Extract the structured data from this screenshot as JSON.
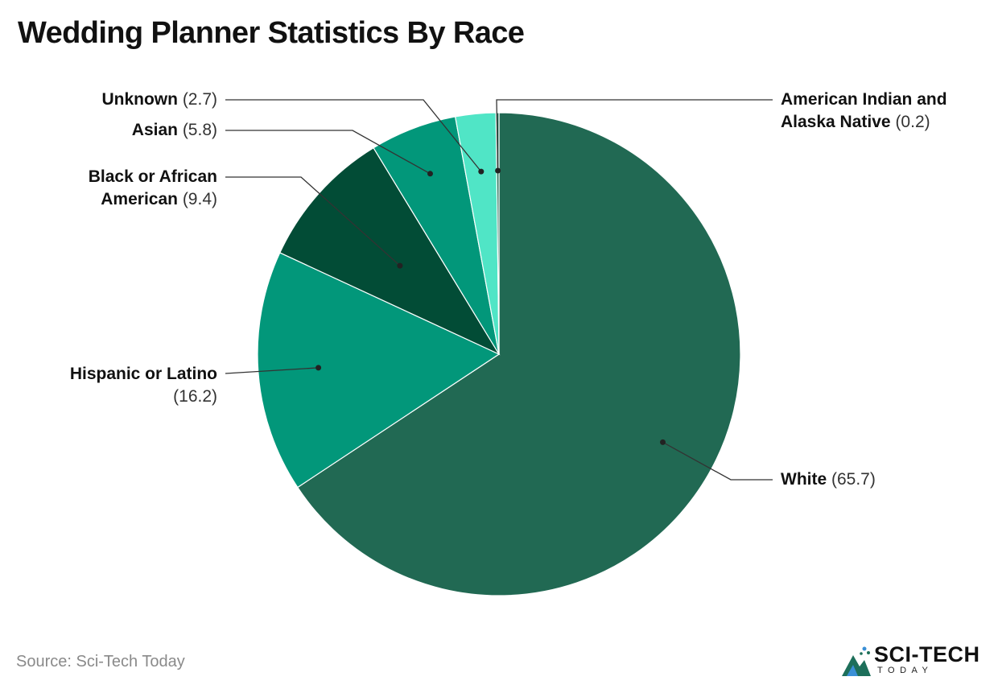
{
  "title": "Wedding Planner Statistics By Race",
  "source": "Source: Sci-Tech Today",
  "logo": {
    "main": "SCI-TECH",
    "sub": "TODAY"
  },
  "chart_data": {
    "type": "pie",
    "title": "Wedding Planner Statistics By Race",
    "start_angle_deg": 0,
    "direction": "clockwise",
    "slices": [
      {
        "name": "White",
        "line1": "White",
        "line2": "",
        "value_text": "(65.7)",
        "value": 65.7,
        "color": "#216953"
      },
      {
        "name": "Hispanic or Latino",
        "line1": "Hispanic or Latino",
        "line2": "",
        "value_text": "(16.2)",
        "value": 16.2,
        "color": "#02977A"
      },
      {
        "name": "Black or African American",
        "line1": "Black or African",
        "line2": "American",
        "value_text": "(9.4)",
        "value": 9.4,
        "color": "#024C36"
      },
      {
        "name": "Asian",
        "line1": "Asian",
        "line2": "",
        "value_text": "(5.8)",
        "value": 5.8,
        "color": "#02977A"
      },
      {
        "name": "Unknown",
        "line1": "Unknown",
        "line2": "",
        "value_text": "(2.7)",
        "value": 2.7,
        "color": "#50E5C6"
      },
      {
        "name": "American Indian and Alaska Native",
        "line1": "American Indian and",
        "line2": "Alaska Native",
        "value_text": "(0.2)",
        "value": 0.2,
        "color": "#216953"
      }
    ]
  }
}
